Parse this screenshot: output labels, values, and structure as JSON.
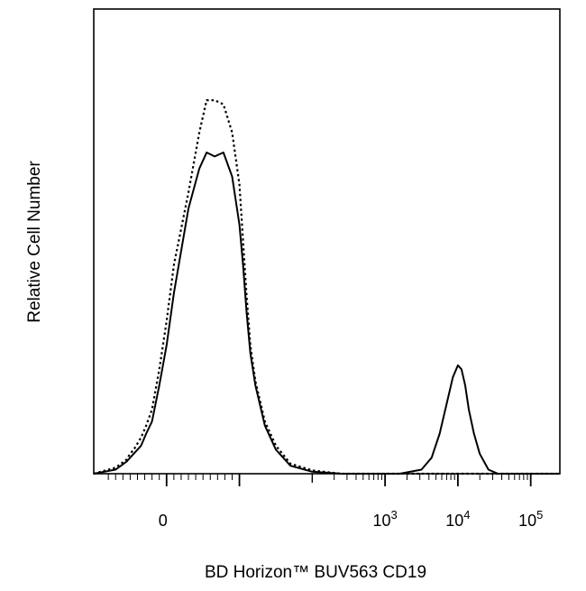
{
  "chart_data": {
    "type": "line",
    "title": "",
    "xlabel": "BD Horizon™ BUV563 CD19",
    "ylabel": "Relative Cell Number",
    "x_scale": "biexponential",
    "x_ticks": [
      {
        "base": "0",
        "exp": ""
      },
      {
        "base": "10",
        "exp": "3"
      },
      {
        "base": "10",
        "exp": "4"
      },
      {
        "base": "10",
        "exp": "5"
      }
    ],
    "ylim": [
      0,
      1
    ],
    "grid": false,
    "legend": "none",
    "series": [
      {
        "style": "solid",
        "color": "#000000",
        "x_display": [
          -1.0,
          -0.7,
          -0.55,
          -0.5,
          -0.45,
          -0.35,
          -0.28,
          -0.2,
          -0.1,
          0.0,
          0.1,
          0.3,
          0.45,
          0.55,
          0.66,
          0.78,
          0.9,
          1.0,
          1.05,
          1.1,
          1.15,
          1.22,
          1.35,
          1.5,
          1.7,
          2.0,
          2.4,
          2.85,
          3.2,
          3.5,
          3.64,
          3.75,
          3.84,
          3.93,
          4.0,
          4.05,
          4.1,
          4.15,
          4.22,
          4.3,
          4.42,
          4.55,
          4.75,
          5.0,
          5.4
        ],
        "y": [
          0.0,
          0.01,
          0.03,
          0.04,
          0.05,
          0.07,
          0.1,
          0.13,
          0.22,
          0.32,
          0.45,
          0.66,
          0.76,
          0.8,
          0.79,
          0.8,
          0.74,
          0.62,
          0.52,
          0.4,
          0.3,
          0.22,
          0.12,
          0.06,
          0.02,
          0.005,
          0.0,
          0.0,
          0.0,
          0.01,
          0.04,
          0.1,
          0.17,
          0.24,
          0.27,
          0.26,
          0.22,
          0.16,
          0.1,
          0.05,
          0.01,
          0.0,
          0.0,
          0.0,
          0.0
        ]
      },
      {
        "style": "dotted",
        "color": "#000000",
        "x_display": [
          -1.0,
          -0.7,
          -0.55,
          -0.5,
          -0.45,
          -0.35,
          -0.28,
          -0.2,
          -0.1,
          0.0,
          0.1,
          0.3,
          0.45,
          0.55,
          0.66,
          0.78,
          0.9,
          1.0,
          1.05,
          1.1,
          1.15,
          1.22,
          1.35,
          1.5,
          1.7,
          2.0,
          2.4,
          2.85,
          3.2,
          3.6,
          4.0,
          4.5,
          5.0,
          5.4
        ],
        "y": [
          0.0,
          0.015,
          0.035,
          0.05,
          0.06,
          0.09,
          0.12,
          0.16,
          0.26,
          0.38,
          0.52,
          0.7,
          0.85,
          0.93,
          0.93,
          0.92,
          0.85,
          0.72,
          0.58,
          0.44,
          0.32,
          0.23,
          0.13,
          0.07,
          0.025,
          0.008,
          0.0,
          0.0,
          0.0,
          0.0,
          0.0,
          0.0,
          0.0,
          0.0
        ]
      }
    ]
  }
}
